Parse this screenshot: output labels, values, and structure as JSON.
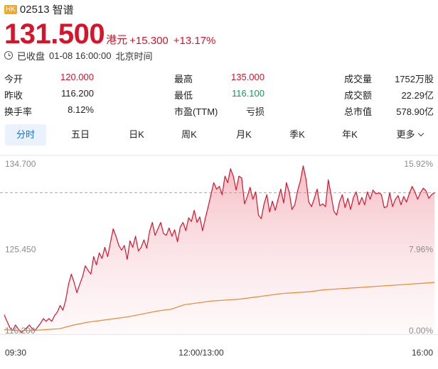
{
  "header": {
    "badge": "HK",
    "code": "02513",
    "name": "智谱"
  },
  "price": {
    "last": "131.500",
    "currency": "港元",
    "change": "+15.300",
    "change_pct": "+13.17%"
  },
  "status": {
    "text": "已收盘",
    "datetime": "01-08 16:00:00",
    "tz": "北京时间"
  },
  "stats": [
    [
      {
        "label": "今开",
        "value": "120.000",
        "tone": "up"
      },
      {
        "label": "最高",
        "value": "135.000",
        "tone": "up"
      },
      {
        "label": "成交量",
        "value": "1752万股",
        "tone": "neutral"
      }
    ],
    [
      {
        "label": "昨收",
        "value": "116.200",
        "tone": "neutral"
      },
      {
        "label": "最低",
        "value": "116.100",
        "tone": "down"
      },
      {
        "label": "成交额",
        "value": "22.29亿",
        "tone": "neutral"
      }
    ],
    [
      {
        "label": "换手率",
        "value": "8.12%",
        "tone": "neutral"
      },
      {
        "label": "市盈(TTM)",
        "value": "亏损",
        "tone": "neutral"
      },
      {
        "label": "总市值",
        "value": "578.90亿",
        "tone": "neutral"
      }
    ]
  ],
  "tabs": [
    "分时",
    "五日",
    "日K",
    "周K",
    "月K",
    "季K",
    "年K",
    "更多"
  ],
  "active_tab": "分时",
  "colors": {
    "up": "#d8142b",
    "down": "#0f9d58",
    "accent": "#1e6ce8",
    "avg_line": "#e8892a"
  },
  "chart_data": {
    "type": "line",
    "title": "",
    "y_left_ticks": [
      "134.700",
      "125.450",
      "116.200"
    ],
    "y_right_ticks": [
      "15.92%",
      "7.96%",
      "0.00%"
    ],
    "x_ticks": [
      "09:30",
      "12:00/13:00",
      "16:00"
    ],
    "ylim": [
      116.2,
      134.7
    ],
    "prev_close": 116.2,
    "last_price": 131.5,
    "series": [
      {
        "values": [
          118.3,
          117.6,
          116.9,
          116.6,
          117.2,
          116.8,
          116.4,
          116.6,
          116.9,
          117.2,
          116.8,
          116.6,
          117.0,
          117.4,
          117.9,
          117.6,
          117.9,
          117.6,
          118.2,
          118.6,
          119.3,
          118.8,
          119.9,
          121.6,
          122.7,
          121.8,
          120.7,
          121.6,
          122.4,
          123.6,
          123.1,
          122.7,
          124.6,
          123.7,
          125.0,
          124.4,
          125.6,
          124.6,
          126.1,
          127.6,
          126.8,
          125.8,
          125.3,
          125.8,
          124.3,
          126.3,
          125.6,
          126.8,
          125.2,
          125.6,
          126.4,
          125.5,
          127.3,
          128.3,
          126.9,
          127.6,
          128.3,
          127.1,
          126.9,
          127.7,
          126.8,
          127.5,
          126.2,
          127.8,
          128.3,
          127.4,
          128.8,
          128.4,
          129.6,
          128.3,
          128.9,
          127.4,
          128.8,
          130.0,
          131.3,
          132.6,
          131.9,
          132.2,
          131.3,
          133.3,
          132.6,
          134.1,
          133.3,
          131.8,
          133.3,
          133.1,
          130.3,
          131.1,
          132.1,
          130.8,
          131.6,
          129.1,
          128.7,
          130.3,
          131.3,
          129.4,
          130.6,
          129.6,
          130.8,
          131.9,
          130.4,
          132.6,
          131.6,
          129.7,
          130.2,
          131.7,
          132.8,
          134.4,
          133.0,
          130.5,
          130.0,
          130.9,
          131.9,
          130.1,
          130.3,
          130.0,
          132.9,
          131.3,
          129.5,
          129.1,
          130.5,
          131.3,
          129.9,
          130.9,
          129.7,
          131.0,
          131.6,
          130.2,
          131.0,
          130.2,
          131.6,
          130.8,
          131.8,
          131.4,
          131.5,
          131.3,
          129.9,
          130.0,
          131.5,
          130.0,
          130.8,
          131.2,
          130.2,
          131.1,
          130.5,
          131.4,
          132.2,
          131.6,
          130.8,
          131.5,
          132.0,
          131.7,
          130.9,
          131.3,
          131.5
        ]
      },
      {
        "values": [
          116.7,
          116.6,
          116.6,
          116.7,
          116.8,
          117.2,
          117.5,
          117.7,
          117.9,
          118.1,
          118.4,
          118.7,
          118.9,
          119.4,
          119.6,
          119.8,
          119.9,
          120.0,
          120.2,
          120.4,
          120.6,
          120.7,
          120.8,
          121.0,
          121.1,
          121.2,
          121.3,
          121.4,
          121.5,
          121.6,
          121.7,
          121.8
        ]
      }
    ]
  }
}
